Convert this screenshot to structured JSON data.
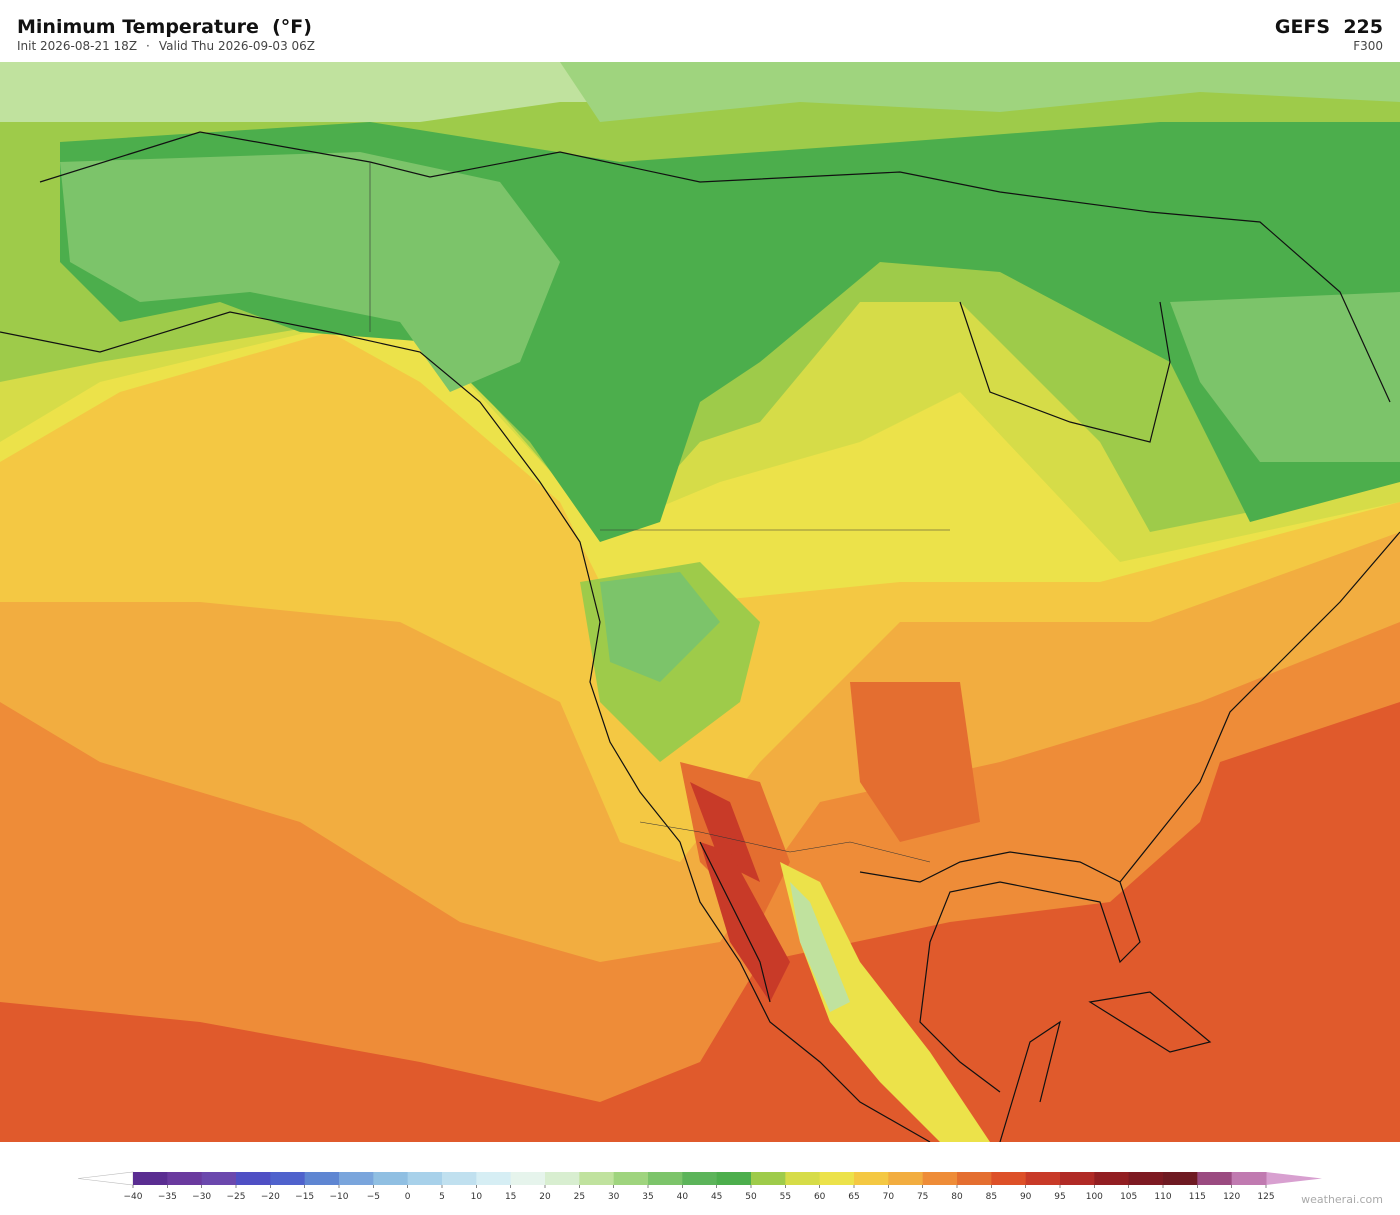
{
  "header": {
    "title": "Minimum Temperature  (°F)",
    "init": "Init 2026-08-21 18Z",
    "separator": "·",
    "valid": "Valid Thu 2026-09-03 06Z",
    "model": "GEFS  225",
    "forecast_hour": "F300"
  },
  "colorbar": {
    "ticks": [
      {
        "value": -40,
        "label": "−40"
      },
      {
        "value": -35,
        "label": "−35"
      },
      {
        "value": -30,
        "label": "−30"
      },
      {
        "value": -25,
        "label": "−25"
      },
      {
        "value": -20,
        "label": "−20"
      },
      {
        "value": -15,
        "label": "−15"
      },
      {
        "value": -10,
        "label": "−10"
      },
      {
        "value": -5,
        "label": "−5"
      },
      0,
      5,
      10,
      15,
      20,
      25,
      30,
      35,
      40,
      45,
      50,
      55,
      60,
      65,
      70,
      75,
      80,
      85,
      90,
      95,
      100,
      105,
      110,
      115,
      120,
      125
    ],
    "colors": [
      "#5a2d91",
      "#6a3a9e",
      "#6b48ad",
      "#4f4fc4",
      "#4f62cc",
      "#5f86d2",
      "#7aa5dc",
      "#90bfe2",
      "#a8d1ea",
      "#c0e0ef",
      "#d6eef4",
      "#e6f4ec",
      "#d8eed0",
      "#c0e29e",
      "#9fd47e",
      "#7cc46a",
      "#5cb45a",
      "#4cae4c",
      "#9ecb4a",
      "#d6dc48",
      "#ece24a",
      "#f4c843",
      "#f2ad40",
      "#ee8c38",
      "#e46e30",
      "#dd5028",
      "#c83a28",
      "#b02a26",
      "#921e22",
      "#7d1a22",
      "#6e1a22",
      "#9a4a80",
      "#c07ab0"
    ],
    "under_color": "#ffffff",
    "over_color": "#d8a0d0"
  },
  "watermark": "weatherai.com"
}
